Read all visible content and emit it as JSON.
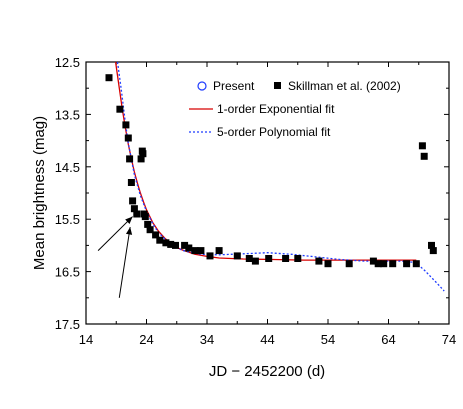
{
  "chart_data": {
    "type": "scatter",
    "title": "",
    "xlabel": "JD − 2452200 (d)",
    "ylabel": "Mean brightness (mag)",
    "xlim": [
      14,
      74
    ],
    "ylim": [
      12.5,
      17.5
    ],
    "y_inverted": true,
    "xticks": [
      "14",
      "24",
      "34",
      "44",
      "54",
      "64",
      "74"
    ],
    "yticks": [
      "12.5",
      "13.5",
      "14.5",
      "15.5",
      "16.5",
      "17.5"
    ],
    "grid": false,
    "legend_position": "top-right",
    "legend": [
      {
        "label": "Present",
        "marker": "open-circle",
        "color": "#1f3cff"
      },
      {
        "label": "Skillman et al. (2002)",
        "marker": "filled-square",
        "color": "#000000"
      },
      {
        "label": "1-order Exponential fit",
        "line": "solid",
        "color": "#d80000"
      },
      {
        "label": "5-order Polynomial fit",
        "line": "dotted",
        "color": "#1f3cff"
      }
    ],
    "series": [
      {
        "name": "Skillman et al. (2002)",
        "points": [
          [
            17.8,
            12.8
          ],
          [
            19.6,
            13.4
          ],
          [
            20.6,
            13.7
          ],
          [
            21.0,
            13.95
          ],
          [
            21.2,
            14.35
          ],
          [
            21.5,
            14.8
          ],
          [
            21.7,
            15.15
          ],
          [
            22.0,
            15.3
          ],
          [
            22.4,
            15.4
          ],
          [
            23.1,
            14.35
          ],
          [
            23.3,
            14.2
          ],
          [
            23.4,
            14.25
          ],
          [
            23.6,
            15.4
          ],
          [
            23.8,
            15.45
          ],
          [
            24.2,
            15.6
          ],
          [
            24.6,
            15.7
          ],
          [
            25.5,
            15.8
          ],
          [
            26.2,
            15.9
          ],
          [
            27.2,
            15.95
          ],
          [
            28.0,
            15.98
          ],
          [
            28.8,
            16.0
          ],
          [
            30.3,
            16.0
          ],
          [
            31.0,
            16.05
          ],
          [
            32.0,
            16.1
          ],
          [
            33.0,
            16.1
          ],
          [
            34.5,
            16.2
          ],
          [
            36.0,
            16.1
          ],
          [
            39.0,
            16.2
          ],
          [
            41.0,
            16.25
          ],
          [
            42.0,
            16.3
          ],
          [
            44.2,
            16.25
          ],
          [
            47.0,
            16.25
          ],
          [
            49.0,
            16.25
          ],
          [
            52.5,
            16.3
          ],
          [
            54.0,
            16.35
          ],
          [
            57.5,
            16.35
          ],
          [
            61.5,
            16.3
          ],
          [
            62.3,
            16.35
          ],
          [
            63.2,
            16.35
          ],
          [
            64.7,
            16.35
          ],
          [
            67.0,
            16.35
          ],
          [
            68.6,
            16.35
          ],
          [
            69.6,
            14.1
          ],
          [
            69.9,
            14.3
          ],
          [
            71.1,
            16.0
          ],
          [
            71.4,
            16.1
          ]
        ]
      }
    ],
    "fits": [
      {
        "name": "1-order Exponential fit",
        "points": [
          [
            18.9,
            12.5
          ],
          [
            19.5,
            13.0
          ],
          [
            20.0,
            13.4
          ],
          [
            20.5,
            13.75
          ],
          [
            21.0,
            14.07
          ],
          [
            21.5,
            14.35
          ],
          [
            22.0,
            14.6
          ],
          [
            22.5,
            14.81
          ],
          [
            23.0,
            15.0
          ],
          [
            23.5,
            15.17
          ],
          [
            24.0,
            15.32
          ],
          [
            25.0,
            15.56
          ],
          [
            26.0,
            15.73
          ],
          [
            27.0,
            15.86
          ],
          [
            28.0,
            15.96
          ],
          [
            29.0,
            16.04
          ],
          [
            30.0,
            16.09
          ],
          [
            32.0,
            16.17
          ],
          [
            34.0,
            16.21
          ],
          [
            36.0,
            16.24
          ],
          [
            40.0,
            16.26
          ],
          [
            45.0,
            16.27
          ],
          [
            50.0,
            16.28
          ],
          [
            55.0,
            16.28
          ],
          [
            60.0,
            16.28
          ],
          [
            65.0,
            16.28
          ],
          [
            68.6,
            16.28
          ]
        ]
      },
      {
        "name": "5-order Polynomial fit",
        "points": [
          [
            19.2,
            12.5
          ],
          [
            19.8,
            13.0
          ],
          [
            20.5,
            13.65
          ],
          [
            21.0,
            14.05
          ],
          [
            22.0,
            14.65
          ],
          [
            23.0,
            15.05
          ],
          [
            24.0,
            15.35
          ],
          [
            25.0,
            15.58
          ],
          [
            26.0,
            15.76
          ],
          [
            28.0,
            15.98
          ],
          [
            30.0,
            16.1
          ],
          [
            33.0,
            16.17
          ],
          [
            36.0,
            16.18
          ],
          [
            40.0,
            16.16
          ],
          [
            44.0,
            16.14
          ],
          [
            48.0,
            16.17
          ],
          [
            52.0,
            16.22
          ],
          [
            56.0,
            16.27
          ],
          [
            60.0,
            16.3
          ],
          [
            64.0,
            16.3
          ],
          [
            66.0,
            16.3
          ],
          [
            68.0,
            16.32
          ],
          [
            69.0,
            16.38
          ],
          [
            70.0,
            16.48
          ],
          [
            71.0,
            16.6
          ],
          [
            72.0,
            16.72
          ],
          [
            73.2,
            16.87
          ]
        ]
      }
    ],
    "annotations": [
      {
        "type": "arrow",
        "from": [
          16.0,
          16.1
        ],
        "to": [
          21.7,
          15.45
        ]
      },
      {
        "type": "arrow",
        "from": [
          19.5,
          17.0
        ],
        "to": [
          21.3,
          15.65
        ]
      }
    ]
  }
}
